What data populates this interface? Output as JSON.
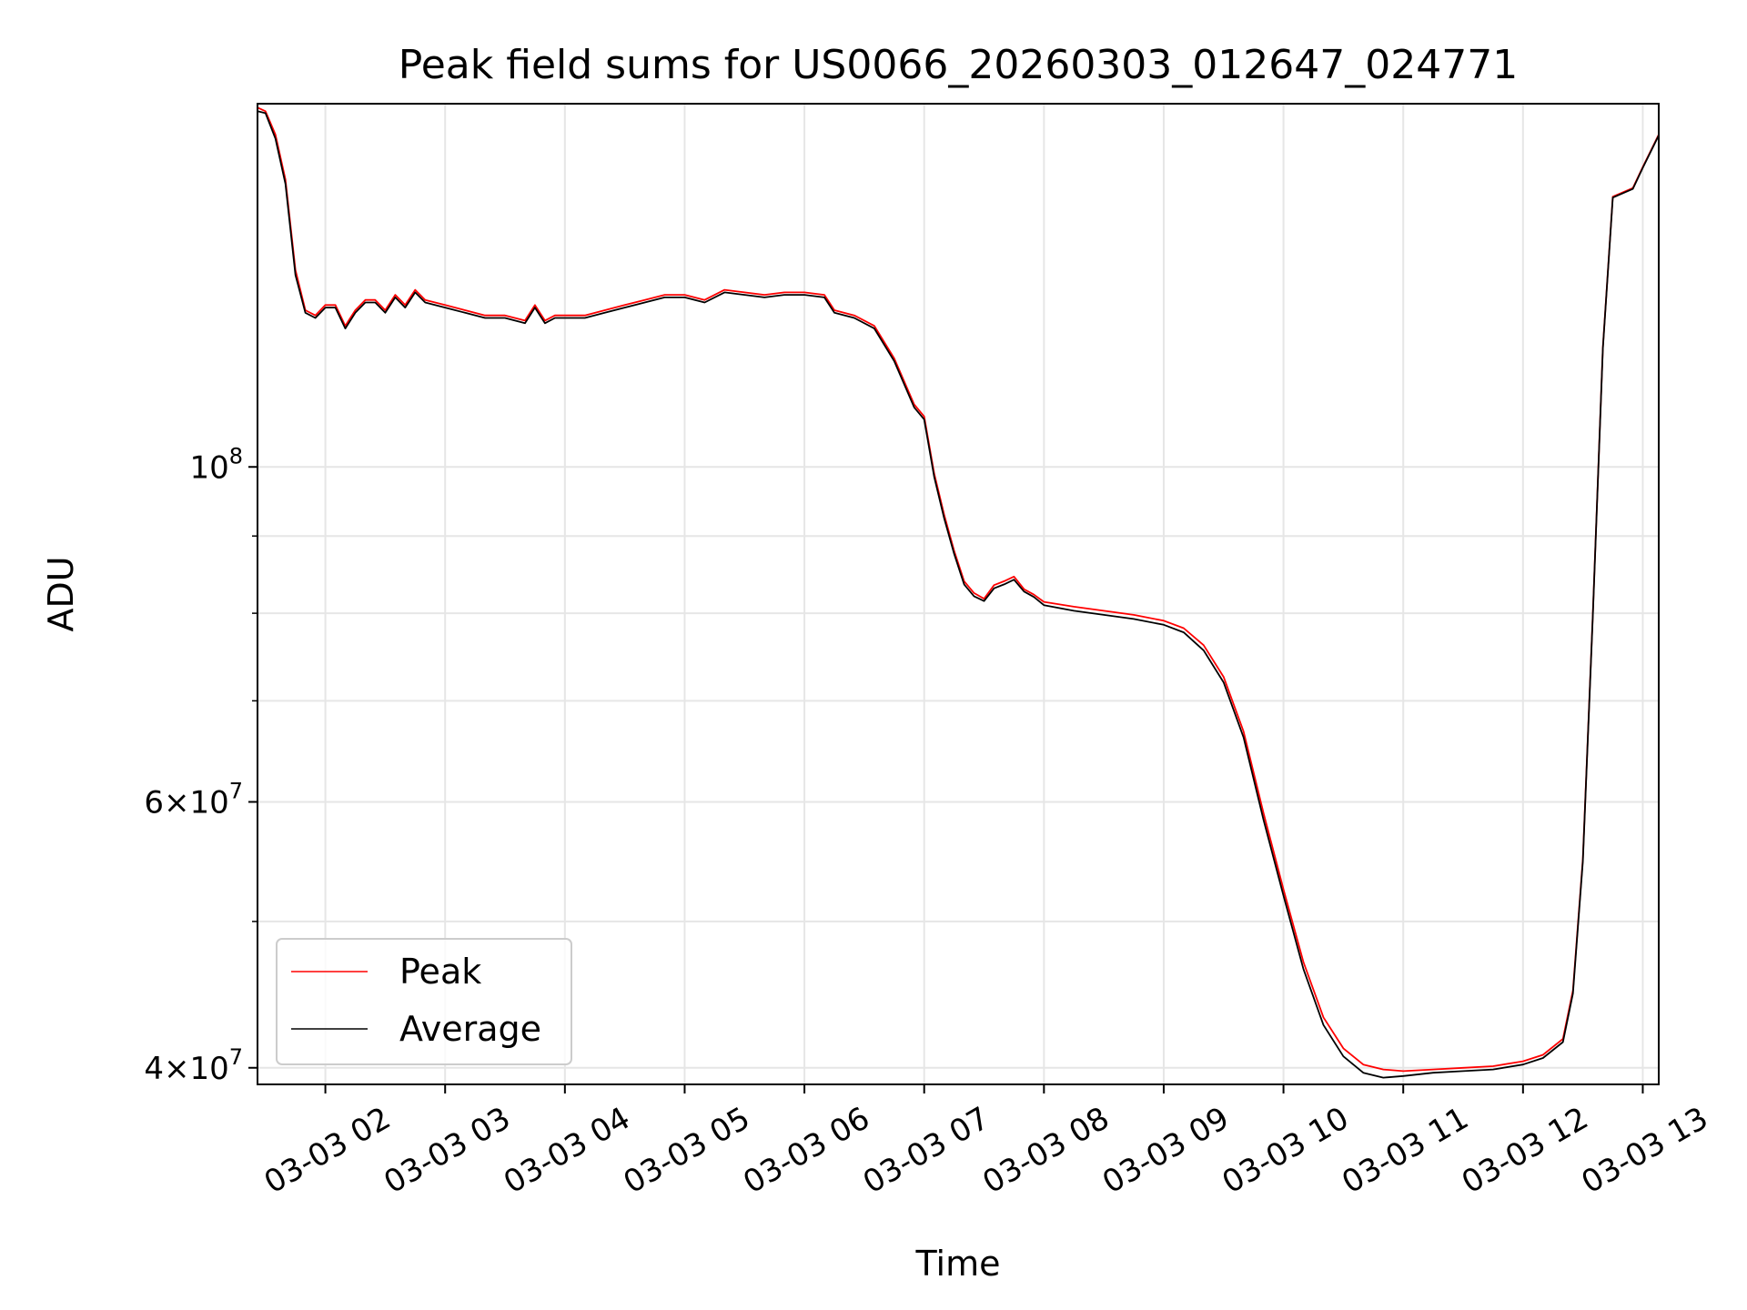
{
  "chart_data": {
    "type": "line",
    "title": "Peak field sums for US0066_20260303_012647_024771",
    "xlabel": "Time",
    "ylabel": "ADU",
    "y_scale": "log",
    "xlim": [
      "2026-03-03 01:26",
      "2026-03-03 13:08"
    ],
    "ylim": [
      39000000,
      174000000
    ],
    "grid": true,
    "legend_position": "lower-left",
    "x_ticks": [
      "03-03 02",
      "03-03 03",
      "03-03 04",
      "03-03 05",
      "03-03 06",
      "03-03 07",
      "03-03 08",
      "03-03 09",
      "03-03 10",
      "03-03 11",
      "03-03 12",
      "03-03 13"
    ],
    "y_ticks": [
      {
        "value": 40000000,
        "mant": "4",
        "base": "10",
        "exp": "7"
      },
      {
        "value": 60000000,
        "mant": "6",
        "base": "10",
        "exp": "7"
      },
      {
        "value": 100000000,
        "mant": "",
        "base": "10",
        "exp": "8"
      }
    ],
    "y_minor_ticks": [
      50000000,
      70000000,
      80000000,
      90000000
    ],
    "series": [
      {
        "name": "Peak",
        "color": "#ff0000",
        "points": [
          [
            "2026-03-03 01:26",
            173000000
          ],
          [
            "2026-03-03 01:30",
            172000000
          ],
          [
            "2026-03-03 01:35",
            166000000
          ],
          [
            "2026-03-03 01:40",
            155000000
          ],
          [
            "2026-03-03 01:45",
            135000000
          ],
          [
            "2026-03-03 01:50",
            127000000
          ],
          [
            "2026-03-03 01:55",
            126000000
          ],
          [
            "2026-03-03 02:00",
            128000000
          ],
          [
            "2026-03-03 02:05",
            128000000
          ],
          [
            "2026-03-03 02:10",
            124000000
          ],
          [
            "2026-03-03 02:15",
            127000000
          ],
          [
            "2026-03-03 02:20",
            129000000
          ],
          [
            "2026-03-03 02:25",
            129000000
          ],
          [
            "2026-03-03 02:30",
            127000000
          ],
          [
            "2026-03-03 02:35",
            130000000
          ],
          [
            "2026-03-03 02:40",
            128000000
          ],
          [
            "2026-03-03 02:45",
            131000000
          ],
          [
            "2026-03-03 02:50",
            129000000
          ],
          [
            "2026-03-03 03:00",
            128000000
          ],
          [
            "2026-03-03 03:10",
            127000000
          ],
          [
            "2026-03-03 03:20",
            126000000
          ],
          [
            "2026-03-03 03:30",
            126000000
          ],
          [
            "2026-03-03 03:40",
            125000000
          ],
          [
            "2026-03-03 03:45",
            128000000
          ],
          [
            "2026-03-03 03:50",
            125000000
          ],
          [
            "2026-03-03 03:55",
            126000000
          ],
          [
            "2026-03-03 04:00",
            126000000
          ],
          [
            "2026-03-03 04:10",
            126000000
          ],
          [
            "2026-03-03 04:20",
            127000000
          ],
          [
            "2026-03-03 04:30",
            128000000
          ],
          [
            "2026-03-03 04:40",
            129000000
          ],
          [
            "2026-03-03 04:50",
            130000000
          ],
          [
            "2026-03-03 05:00",
            130000000
          ],
          [
            "2026-03-03 05:10",
            129000000
          ],
          [
            "2026-03-03 05:20",
            131000000
          ],
          [
            "2026-03-03 05:30",
            130500000
          ],
          [
            "2026-03-03 05:40",
            130000000
          ],
          [
            "2026-03-03 05:50",
            130500000
          ],
          [
            "2026-03-03 06:00",
            130500000
          ],
          [
            "2026-03-03 06:10",
            130000000
          ],
          [
            "2026-03-03 06:15",
            127000000
          ],
          [
            "2026-03-03 06:25",
            126000000
          ],
          [
            "2026-03-03 06:35",
            124000000
          ],
          [
            "2026-03-03 06:45",
            118000000
          ],
          [
            "2026-03-03 06:55",
            110000000
          ],
          [
            "2026-03-03 07:00",
            108000000
          ],
          [
            "2026-03-03 07:05",
            99000000
          ],
          [
            "2026-03-03 07:10",
            93000000
          ],
          [
            "2026-03-03 07:15",
            88000000
          ],
          [
            "2026-03-03 07:20",
            84000000
          ],
          [
            "2026-03-03 07:25",
            82500000
          ],
          [
            "2026-03-03 07:30",
            81800000
          ],
          [
            "2026-03-03 07:35",
            83500000
          ],
          [
            "2026-03-03 07:40",
            84000000
          ],
          [
            "2026-03-03 07:45",
            84600000
          ],
          [
            "2026-03-03 07:50",
            83000000
          ],
          [
            "2026-03-03 07:55",
            82300000
          ],
          [
            "2026-03-03 08:00",
            81400000
          ],
          [
            "2026-03-03 08:15",
            80800000
          ],
          [
            "2026-03-03 08:30",
            80300000
          ],
          [
            "2026-03-03 08:45",
            79800000
          ],
          [
            "2026-03-03 09:00",
            79100000
          ],
          [
            "2026-03-03 09:10",
            78200000
          ],
          [
            "2026-03-03 09:20",
            76200000
          ],
          [
            "2026-03-03 09:30",
            72600000
          ],
          [
            "2026-03-03 09:40",
            66800000
          ],
          [
            "2026-03-03 09:50",
            59000000
          ],
          [
            "2026-03-03 10:00",
            52500000
          ],
          [
            "2026-03-03 10:10",
            47000000
          ],
          [
            "2026-03-03 10:20",
            43200000
          ],
          [
            "2026-03-03 10:30",
            41200000
          ],
          [
            "2026-03-03 10:40",
            40200000
          ],
          [
            "2026-03-03 10:50",
            39900000
          ],
          [
            "2026-03-03 11:00",
            39800000
          ],
          [
            "2026-03-03 11:15",
            39900000
          ],
          [
            "2026-03-03 11:30",
            40000000
          ],
          [
            "2026-03-03 11:45",
            40100000
          ],
          [
            "2026-03-03 12:00",
            40400000
          ],
          [
            "2026-03-03 12:10",
            40800000
          ],
          [
            "2026-03-03 12:20",
            41800000
          ],
          [
            "2026-03-03 12:25",
            45000000
          ],
          [
            "2026-03-03 12:30",
            55000000
          ],
          [
            "2026-03-03 12:35",
            80000000
          ],
          [
            "2026-03-03 12:40",
            120000000
          ],
          [
            "2026-03-03 12:45",
            151000000
          ],
          [
            "2026-03-03 12:50",
            152000000
          ],
          [
            "2026-03-03 12:55",
            153000000
          ],
          [
            "2026-03-03 13:00",
            158000000
          ],
          [
            "2026-03-03 13:08",
            166000000
          ]
        ]
      },
      {
        "name": "Average",
        "color": "#000000",
        "points": [
          [
            "2026-03-03 01:26",
            172000000
          ],
          [
            "2026-03-03 01:30",
            171500000
          ],
          [
            "2026-03-03 01:35",
            165000000
          ],
          [
            "2026-03-03 01:40",
            154000000
          ],
          [
            "2026-03-03 01:45",
            134000000
          ],
          [
            "2026-03-03 01:50",
            126500000
          ],
          [
            "2026-03-03 01:55",
            125500000
          ],
          [
            "2026-03-03 02:00",
            127500000
          ],
          [
            "2026-03-03 02:05",
            127500000
          ],
          [
            "2026-03-03 02:10",
            123500000
          ],
          [
            "2026-03-03 02:15",
            126500000
          ],
          [
            "2026-03-03 02:20",
            128500000
          ],
          [
            "2026-03-03 02:25",
            128500000
          ],
          [
            "2026-03-03 02:30",
            126500000
          ],
          [
            "2026-03-03 02:35",
            129500000
          ],
          [
            "2026-03-03 02:40",
            127500000
          ],
          [
            "2026-03-03 02:45",
            130500000
          ],
          [
            "2026-03-03 02:50",
            128500000
          ],
          [
            "2026-03-03 03:00",
            127500000
          ],
          [
            "2026-03-03 03:10",
            126500000
          ],
          [
            "2026-03-03 03:20",
            125500000
          ],
          [
            "2026-03-03 03:30",
            125500000
          ],
          [
            "2026-03-03 03:40",
            124500000
          ],
          [
            "2026-03-03 03:45",
            127500000
          ],
          [
            "2026-03-03 03:50",
            124500000
          ],
          [
            "2026-03-03 03:55",
            125500000
          ],
          [
            "2026-03-03 04:00",
            125500000
          ],
          [
            "2026-03-03 04:10",
            125500000
          ],
          [
            "2026-03-03 04:20",
            126500000
          ],
          [
            "2026-03-03 04:30",
            127500000
          ],
          [
            "2026-03-03 04:40",
            128500000
          ],
          [
            "2026-03-03 04:50",
            129500000
          ],
          [
            "2026-03-03 05:00",
            129500000
          ],
          [
            "2026-03-03 05:10",
            128500000
          ],
          [
            "2026-03-03 05:20",
            130500000
          ],
          [
            "2026-03-03 05:30",
            130000000
          ],
          [
            "2026-03-03 05:40",
            129500000
          ],
          [
            "2026-03-03 05:50",
            130000000
          ],
          [
            "2026-03-03 06:00",
            130000000
          ],
          [
            "2026-03-03 06:10",
            129500000
          ],
          [
            "2026-03-03 06:15",
            126500000
          ],
          [
            "2026-03-03 06:25",
            125500000
          ],
          [
            "2026-03-03 06:35",
            123500000
          ],
          [
            "2026-03-03 06:45",
            117500000
          ],
          [
            "2026-03-03 06:55",
            109500000
          ],
          [
            "2026-03-03 07:00",
            107500000
          ],
          [
            "2026-03-03 07:05",
            98500000
          ],
          [
            "2026-03-03 07:10",
            92500000
          ],
          [
            "2026-03-03 07:15",
            87600000
          ],
          [
            "2026-03-03 07:20",
            83600000
          ],
          [
            "2026-03-03 07:25",
            82100000
          ],
          [
            "2026-03-03 07:30",
            81500000
          ],
          [
            "2026-03-03 07:35",
            83100000
          ],
          [
            "2026-03-03 07:40",
            83600000
          ],
          [
            "2026-03-03 07:45",
            84200000
          ],
          [
            "2026-03-03 07:50",
            82700000
          ],
          [
            "2026-03-03 07:55",
            82000000
          ],
          [
            "2026-03-03 08:00",
            81000000
          ],
          [
            "2026-03-03 08:15",
            80300000
          ],
          [
            "2026-03-03 08:30",
            79800000
          ],
          [
            "2026-03-03 08:45",
            79300000
          ],
          [
            "2026-03-03 09:00",
            78600000
          ],
          [
            "2026-03-03 09:10",
            77700000
          ],
          [
            "2026-03-03 09:20",
            75600000
          ],
          [
            "2026-03-03 09:30",
            72000000
          ],
          [
            "2026-03-03 09:40",
            66200000
          ],
          [
            "2026-03-03 09:50",
            58400000
          ],
          [
            "2026-03-03 10:00",
            52000000
          ],
          [
            "2026-03-03 10:10",
            46500000
          ],
          [
            "2026-03-03 10:20",
            42700000
          ],
          [
            "2026-03-03 10:30",
            40700000
          ],
          [
            "2026-03-03 10:40",
            39700000
          ],
          [
            "2026-03-03 10:50",
            39400000
          ],
          [
            "2026-03-03 11:00",
            39500000
          ],
          [
            "2026-03-03 11:15",
            39700000
          ],
          [
            "2026-03-03 11:30",
            39800000
          ],
          [
            "2026-03-03 11:45",
            39900000
          ],
          [
            "2026-03-03 12:00",
            40200000
          ],
          [
            "2026-03-03 12:10",
            40600000
          ],
          [
            "2026-03-03 12:20",
            41600000
          ],
          [
            "2026-03-03 12:25",
            44800000
          ],
          [
            "2026-03-03 12:30",
            54800000
          ],
          [
            "2026-03-03 12:35",
            79800000
          ],
          [
            "2026-03-03 12:40",
            119800000
          ],
          [
            "2026-03-03 12:45",
            150800000
          ],
          [
            "2026-03-03 12:50",
            151800000
          ],
          [
            "2026-03-03 12:55",
            152800000
          ],
          [
            "2026-03-03 13:00",
            157800000
          ],
          [
            "2026-03-03 13:08",
            165800000
          ]
        ]
      }
    ]
  }
}
